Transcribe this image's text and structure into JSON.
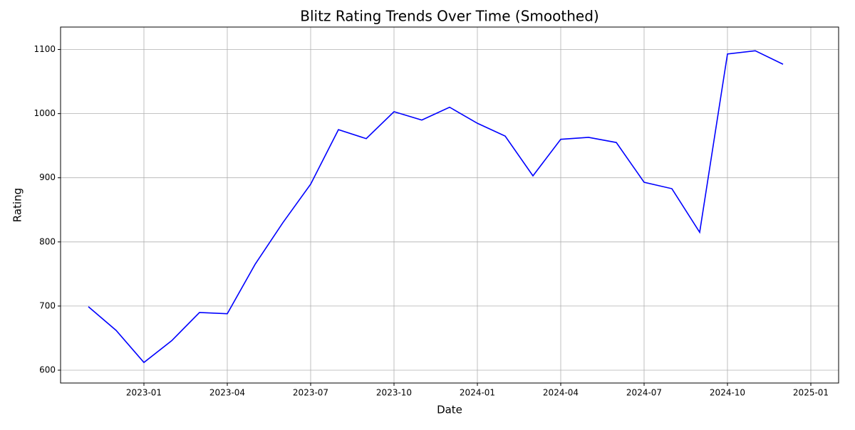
{
  "chart_data": {
    "type": "line",
    "title": "Blitz Rating Trends Over Time (Smoothed)",
    "x_label": "Date",
    "y_label": "Rating",
    "x": [
      "2022-11",
      "2022-12",
      "2023-01",
      "2023-02",
      "2023-03",
      "2023-04",
      "2023-05",
      "2023-06",
      "2023-07",
      "2023-08",
      "2023-09",
      "2023-10",
      "2023-11",
      "2023-12",
      "2024-01",
      "2024-02",
      "2024-03",
      "2024-04",
      "2024-05",
      "2024-06",
      "2024-07",
      "2024-08",
      "2024-09",
      "2024-10",
      "2024-11",
      "2024-12"
    ],
    "series": [
      {
        "name": "Blitz",
        "color": "#0000ff",
        "values": [
          699,
          662,
          612,
          646,
          690,
          688,
          765,
          830,
          890,
          975,
          961,
          1003,
          990,
          1010,
          985,
          965,
          903,
          960,
          963,
          955,
          893,
          883,
          815,
          1093,
          1098,
          1077
        ]
      }
    ],
    "xlim": [
      "2022-10",
      "2025-02"
    ],
    "xticks": [
      "2023-01",
      "2023-04",
      "2023-07",
      "2023-10",
      "2024-01",
      "2024-04",
      "2024-07",
      "2024-10",
      "2025-01"
    ],
    "ylim": [
      580,
      1135
    ],
    "yticks": [
      600,
      700,
      800,
      900,
      1000,
      1100
    ],
    "grid": true
  }
}
